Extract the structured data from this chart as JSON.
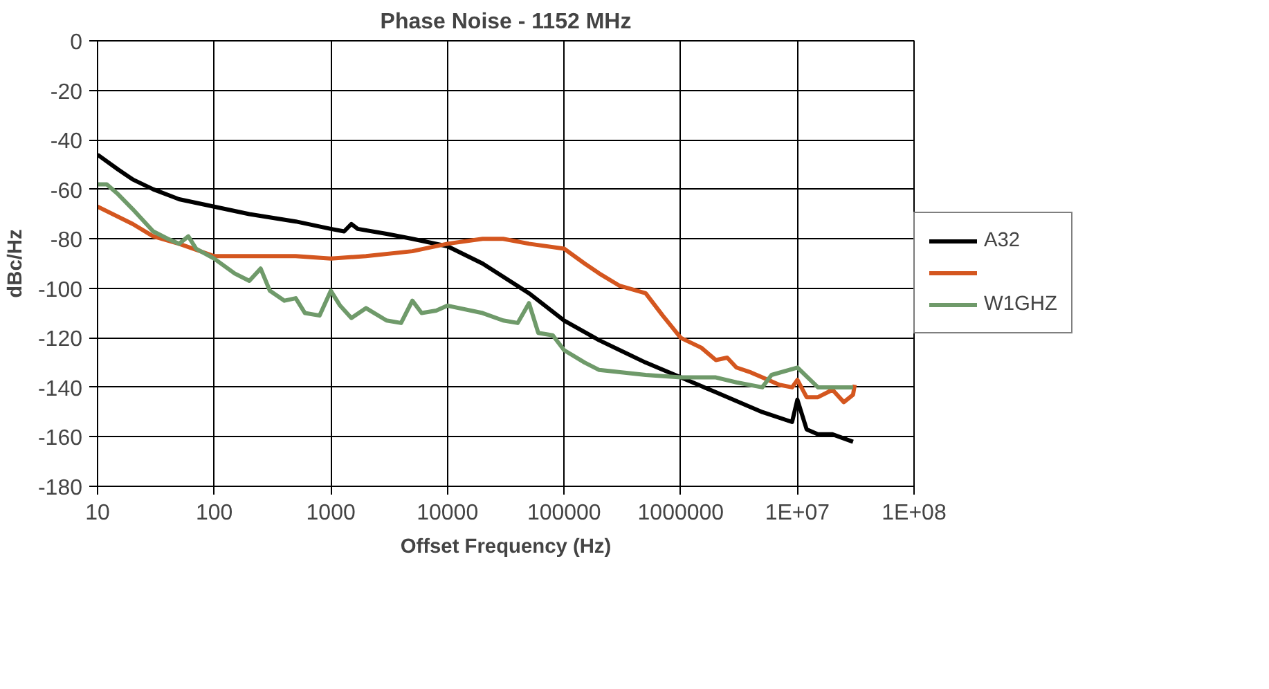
{
  "chart_data": {
    "type": "line",
    "title": "Phase Noise - 1152 MHz",
    "xlabel": "Offset Frequency (Hz)",
    "ylabel": "dBc/Hz",
    "log": "x",
    "grid": true,
    "legend": "right",
    "marker": "none",
    "line_style": "solid",
    "xlim": [
      10,
      100000000
    ],
    "xticks": [
      10,
      100,
      1000,
      10000,
      100000,
      1000000,
      {
        "value": 10000000,
        "label": "1E+07"
      },
      {
        "value": 100000000,
        "label": "1E+08"
      }
    ],
    "ylim": [
      -180,
      0
    ],
    "yticks": [
      -180,
      -160,
      -140,
      -120,
      -100,
      -80,
      -60,
      -40,
      -20,
      0
    ],
    "series": [
      {
        "name": "A32",
        "color": "#000000",
        "x": [
          10,
          15,
          20,
          30,
          50,
          100,
          200,
          500,
          1000,
          1300,
          1500,
          1700,
          3000,
          5000,
          10000,
          20000,
          50000,
          100000,
          200000,
          500000,
          1000000,
          2000000,
          5000000,
          9000000,
          10000000,
          12000000,
          15000000,
          20000000,
          30000000
        ],
        "values": [
          -46,
          -52,
          -56,
          -60,
          -64,
          -67,
          -70,
          -73,
          -76,
          -77,
          -74,
          -76,
          -78,
          -80,
          -83,
          -90,
          -102,
          -113,
          -121,
          -130,
          -136,
          -142,
          -150,
          -154,
          -145,
          -157,
          -159,
          -159,
          -162
        ]
      },
      {
        "color": "#d4561f",
        "x": [
          10,
          20,
          30,
          50,
          100,
          200,
          500,
          1000,
          2000,
          5000,
          10000,
          20000,
          30000,
          50000,
          100000,
          150000,
          200000,
          300000,
          500000,
          700000,
          1000000,
          1500000,
          2000000,
          2500000,
          3000000,
          4000000,
          5000000,
          7000000,
          9000000,
          10000000,
          12000000,
          15000000,
          20000000,
          25000000,
          30000000,
          31000000
        ],
        "values": [
          -67,
          -74,
          -79,
          -82,
          -87,
          -87,
          -87,
          -88,
          -87,
          -85,
          -82,
          -80,
          -80,
          -82,
          -84,
          -90,
          -94,
          -99,
          -102,
          -111,
          -120,
          -124,
          -129,
          -128,
          -132,
          -134,
          -136,
          -139,
          -140,
          -137,
          -144,
          -144,
          -141,
          -146,
          -143,
          -139
        ]
      },
      {
        "name": "W1GHZ",
        "color": "#6f9a6a",
        "x": [
          10,
          12,
          15,
          20,
          30,
          40,
          50,
          60,
          70,
          100,
          150,
          200,
          250,
          300,
          400,
          500,
          600,
          800,
          1000,
          1200,
          1500,
          2000,
          3000,
          4000,
          5000,
          6000,
          8000,
          10000,
          20000,
          30000,
          40000,
          50000,
          60000,
          80000,
          100000,
          150000,
          200000,
          500000,
          1000000,
          2000000,
          3000000,
          5000000,
          6000000,
          10000000,
          15000000,
          20000000,
          30000000
        ],
        "values": [
          -58,
          -58,
          -62,
          -68,
          -77,
          -80,
          -82,
          -79,
          -84,
          -88,
          -94,
          -97,
          -92,
          -101,
          -105,
          -104,
          -110,
          -111,
          -101,
          -107,
          -112,
          -108,
          -113,
          -114,
          -105,
          -110,
          -109,
          -107,
          -110,
          -113,
          -114,
          -106,
          -118,
          -119,
          -125,
          -130,
          -133,
          -135,
          -136,
          -136,
          -138,
          -140,
          -135,
          -132,
          -140,
          -140,
          -140
        ]
      }
    ]
  }
}
